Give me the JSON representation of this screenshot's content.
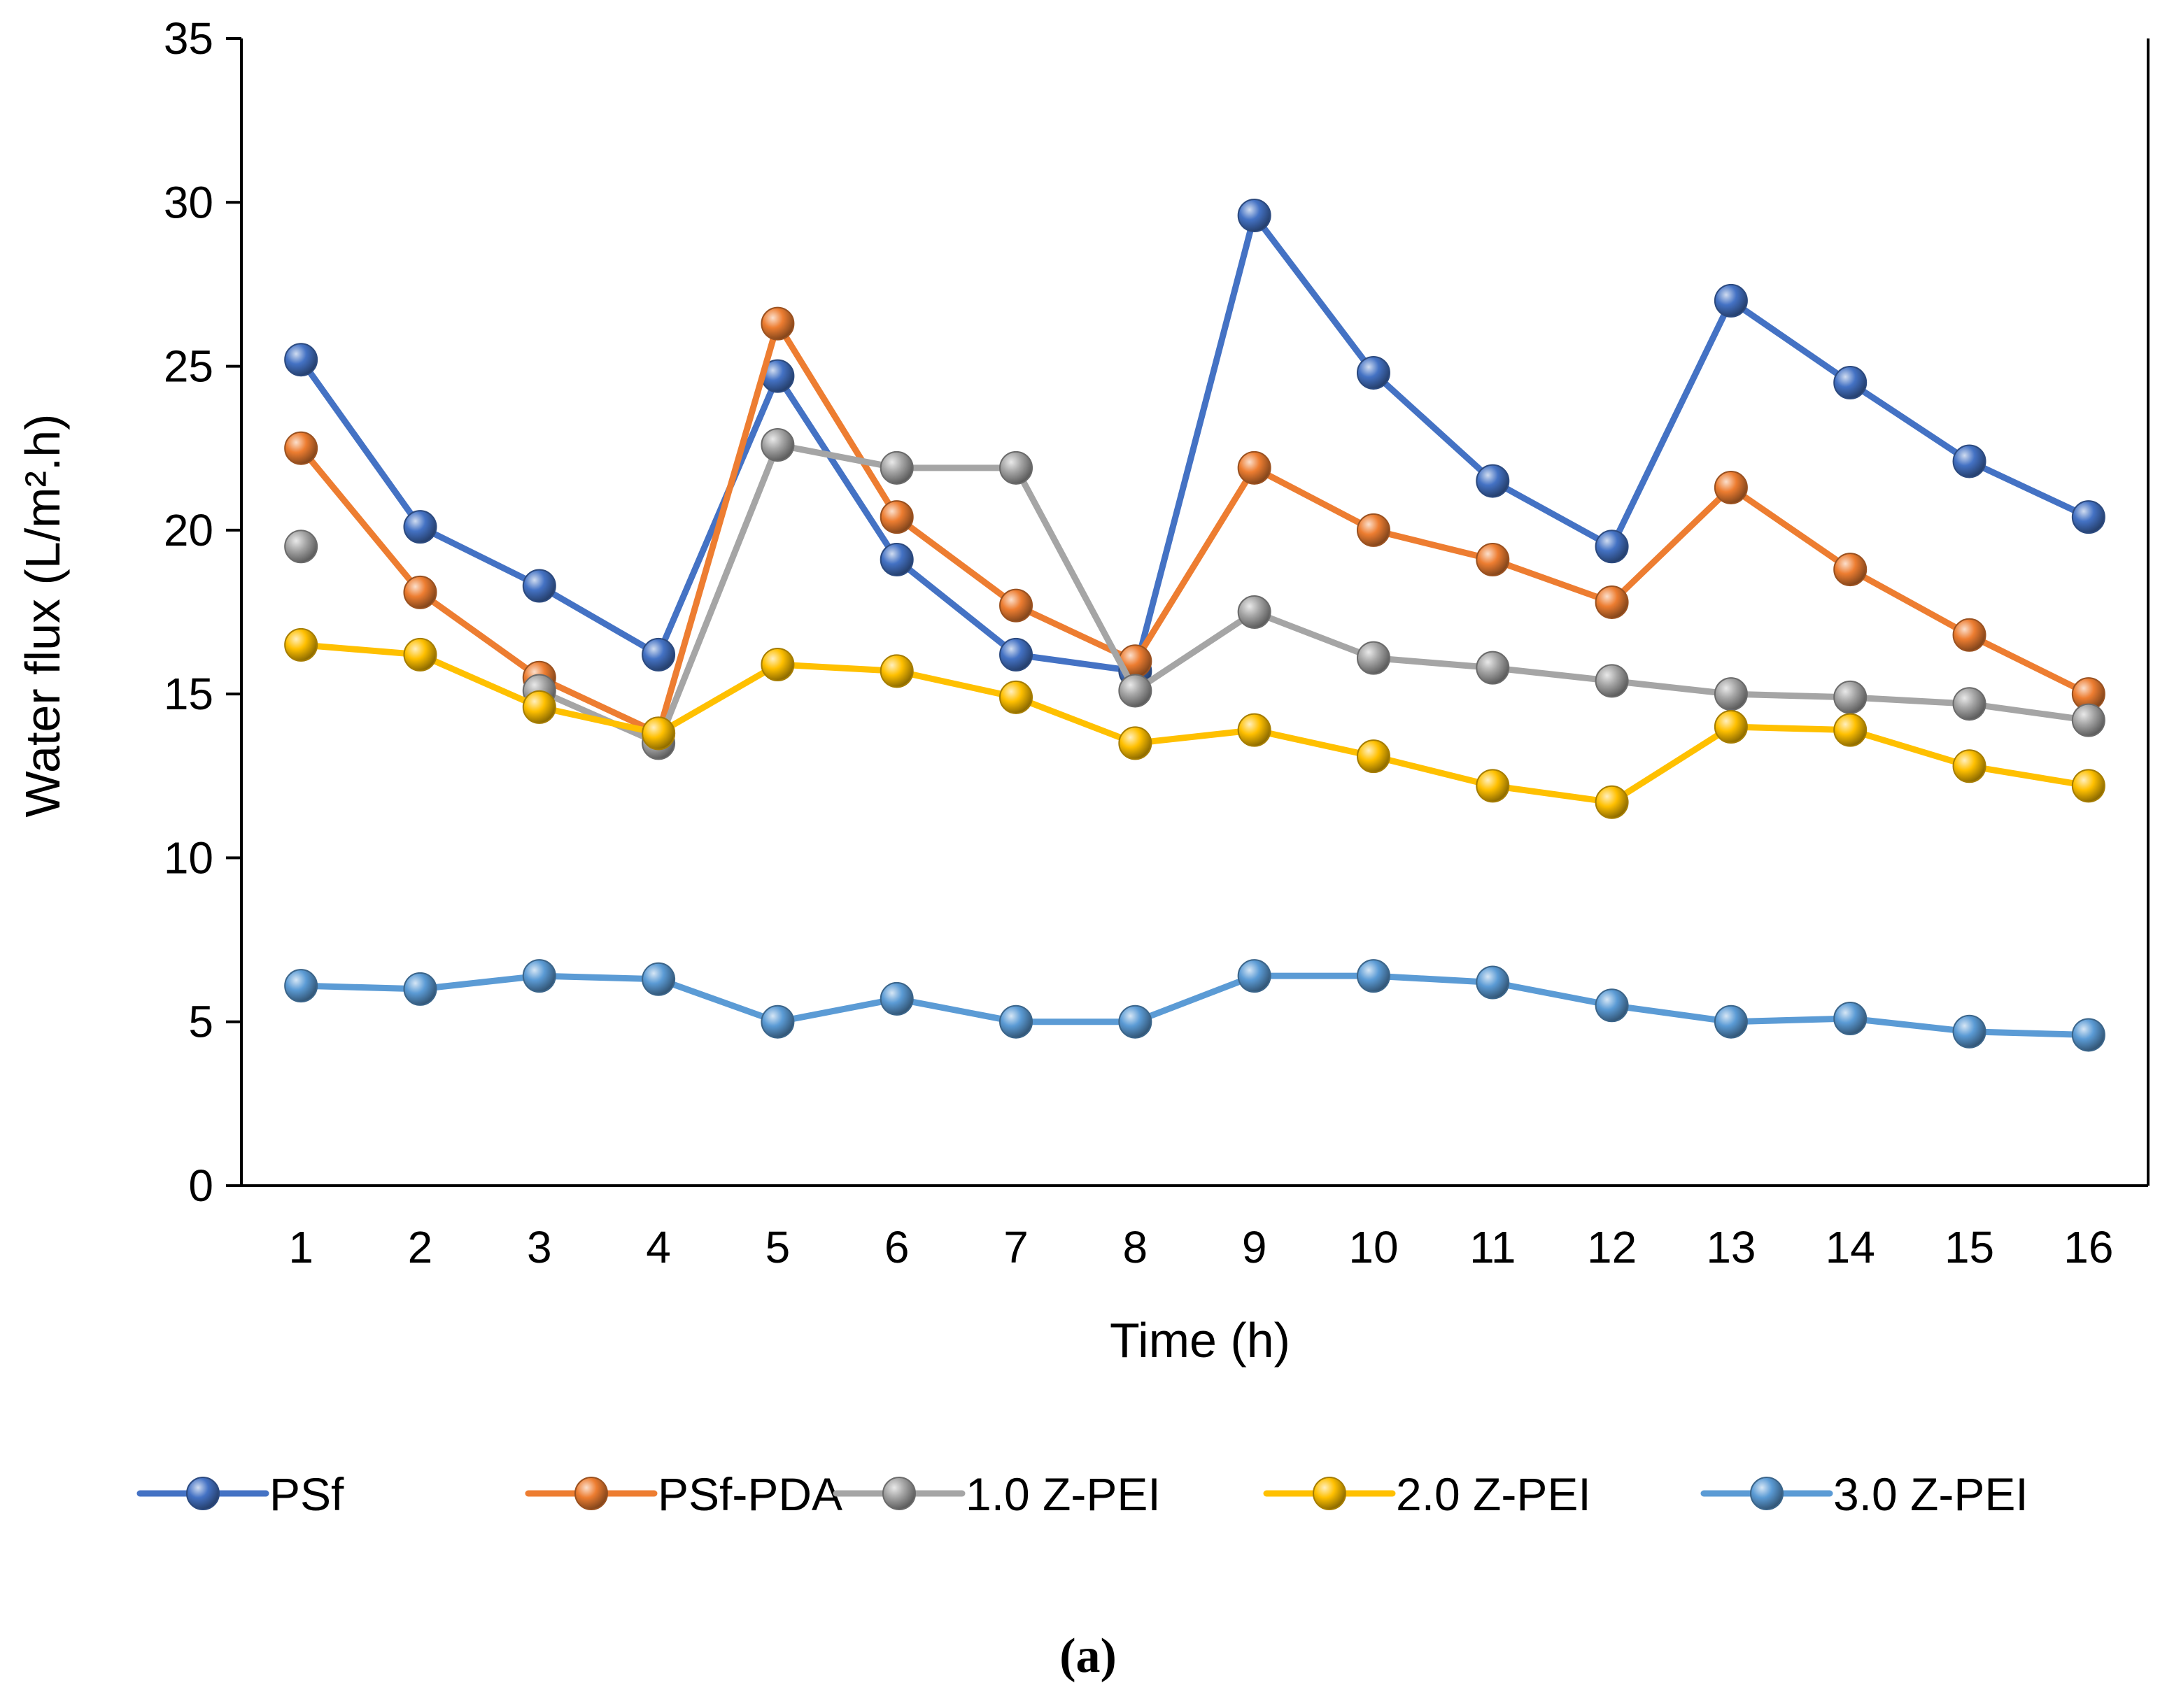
{
  "chart_data": {
    "type": "line",
    "title": "",
    "xlabel": "Time (h)",
    "ylabel": "Water flux (L/m².h)",
    "caption": "(a)",
    "ylim": [
      0,
      35
    ],
    "yticks": [
      0,
      5,
      10,
      15,
      20,
      25,
      30,
      35
    ],
    "grid": false,
    "legend_position": "bottom",
    "categories": [
      "1",
      "2",
      "3",
      "4",
      "5",
      "6",
      "7",
      "8",
      "9",
      "10",
      "11",
      "12",
      "13",
      "14",
      "15",
      "16"
    ],
    "series": [
      {
        "name": "PSf",
        "color": "#4472C4",
        "values": [
          25.2,
          20.1,
          18.3,
          16.2,
          24.7,
          19.1,
          16.2,
          15.7,
          29.6,
          24.8,
          21.5,
          19.5,
          27.0,
          24.5,
          22.1,
          20.4
        ]
      },
      {
        "name": "PSf-PDA",
        "color": "#ED7D31",
        "values": [
          22.5,
          18.1,
          15.5,
          13.8,
          26.3,
          20.4,
          17.7,
          16.0,
          21.9,
          20.0,
          19.1,
          17.8,
          21.3,
          18.8,
          16.8,
          15.0
        ]
      },
      {
        "name": "1.0 Z-PEI",
        "color": "#A5A5A5",
        "values": [
          19.5,
          null,
          15.1,
          13.5,
          22.6,
          21.9,
          21.9,
          15.1,
          17.5,
          16.1,
          15.8,
          15.4,
          15.0,
          14.9,
          14.7,
          14.2
        ]
      },
      {
        "name": "2.0 Z-PEI",
        "color": "#FFC000",
        "values": [
          16.5,
          16.2,
          14.6,
          13.8,
          15.9,
          15.7,
          14.9,
          13.5,
          13.9,
          13.1,
          12.2,
          11.7,
          14.0,
          13.9,
          12.8,
          12.2
        ]
      },
      {
        "name": "3.0 Z-PEI",
        "color": "#5B9BD5",
        "values": [
          6.1,
          6.0,
          6.4,
          6.3,
          5.0,
          5.7,
          5.0,
          5.0,
          6.4,
          6.4,
          6.2,
          5.5,
          5.0,
          5.1,
          4.7,
          4.6
        ]
      }
    ]
  }
}
